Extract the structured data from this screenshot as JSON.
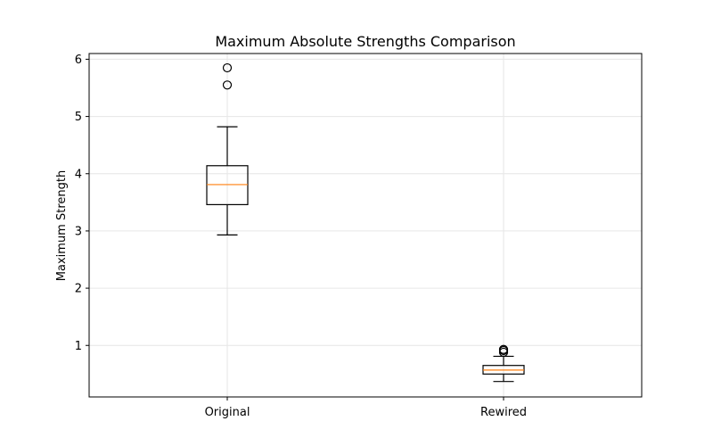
{
  "chart_data": {
    "type": "box",
    "title": "Maximum Absolute Strengths Comparison",
    "xlabel": "",
    "ylabel": "Maximum Strength",
    "categories": [
      "Original",
      "Rewired"
    ],
    "ylim": [
      0.1,
      6.1
    ],
    "yticks": [
      1,
      2,
      3,
      4,
      5,
      6
    ],
    "grid": true,
    "colors": {
      "median": "#ff7f0e",
      "box": "#000000",
      "grid": "#e6e6e6"
    },
    "boxes": [
      {
        "category": "Original",
        "whisker_low": 2.93,
        "q1": 3.46,
        "median": 3.81,
        "q3": 4.14,
        "whisker_high": 4.82,
        "fliers": [
          5.55,
          5.85
        ]
      },
      {
        "category": "Rewired",
        "whisker_low": 0.37,
        "q1": 0.5,
        "median": 0.57,
        "q3": 0.65,
        "whisker_high": 0.81,
        "fliers": [
          0.88,
          0.91,
          0.93
        ]
      }
    ]
  }
}
